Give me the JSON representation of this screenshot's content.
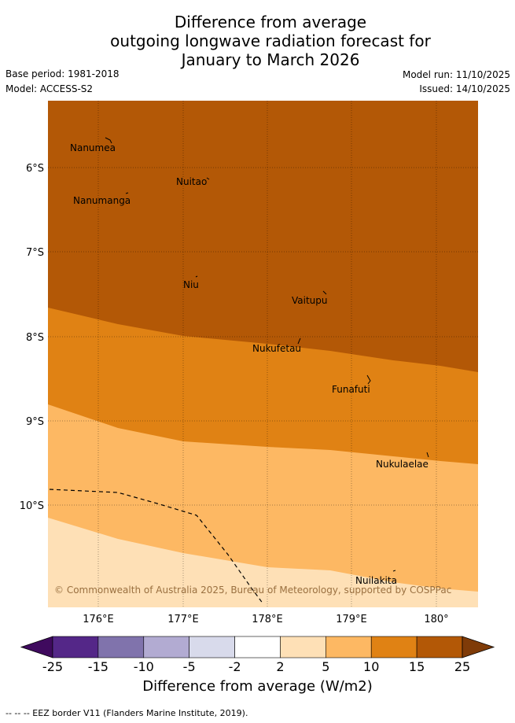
{
  "title": {
    "line1": "Difference from average",
    "line2": "outgoing longwave radiation forecast for",
    "line3": "January to March 2026"
  },
  "meta": {
    "base_period": "Base period: 1981-2018",
    "model": "Model: ACCESS-S2",
    "model_run": "Model run: 11/10/2025",
    "issued": "Issued: 14/10/2025"
  },
  "map": {
    "lon_labels": [
      "176°E",
      "177°E",
      "178°E",
      "179°E",
      "180°"
    ],
    "lat_labels": [
      "6°S",
      "7°S",
      "8°S",
      "9°S",
      "10°S"
    ],
    "places": [
      "Nanumea",
      "Nuitao",
      "Nanumanga",
      "Niu",
      "Vaitupu",
      "Nukufetau",
      "Funafuti",
      "Nukulaelae",
      "Nuilakita"
    ],
    "copyright": "© Commonwealth of Australia 2025, Bureau of Meteorology, supported by COSPPac",
    "colors": {
      "band_15_25": "#b35806",
      "band_10_15": "#e08214",
      "band_5_10": "#fdb863",
      "band_2_5": "#fee0b6"
    }
  },
  "colorbar": {
    "ticks": [
      "-25",
      "-15",
      "-10",
      "-5",
      "-2",
      "2",
      "5",
      "10",
      "15",
      "25"
    ],
    "colors": [
      "#3f0a5e",
      "#542788",
      "#8073ac",
      "#b2abd2",
      "#d8daeb",
      "#ffffff",
      "#fee0b6",
      "#fdb863",
      "#e08214",
      "#b35806",
      "#7f3b08"
    ],
    "label": "Difference from average (W/m2)"
  },
  "legend": {
    "eez": "--  --  -- EEZ border V11 (Flanders Marine Institute, 2019)."
  }
}
